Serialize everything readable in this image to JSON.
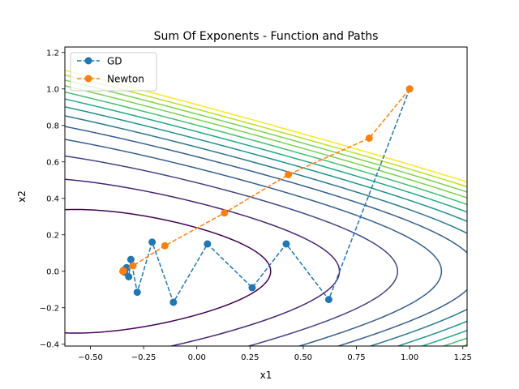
{
  "chart_data": {
    "type": "line",
    "title": "Sum Of Exponents - Function and Paths",
    "xlabel": "x1",
    "ylabel": "x2",
    "xlim": [
      -0.62,
      1.27
    ],
    "ylim": [
      -0.41,
      1.23
    ],
    "xticks": [
      -0.5,
      -0.25,
      0.0,
      0.25,
      0.5,
      0.75,
      1.0,
      1.25
    ],
    "xtick_labels": [
      "−0.50",
      "−0.25",
      "0.00",
      "0.25",
      "0.50",
      "0.75",
      "1.00",
      "1.25"
    ],
    "yticks": [
      -0.4,
      -0.2,
      0.0,
      0.2,
      0.4,
      0.6,
      0.8,
      1.0,
      1.2
    ],
    "ytick_labels": [
      "−0.4",
      "−0.2",
      "0.0",
      "0.2",
      "0.4",
      "0.6",
      "0.8",
      "1.0",
      "1.2"
    ],
    "grid": false,
    "legend_placement": "upper left",
    "series": [
      {
        "name": "GD",
        "color": "#1f77b4",
        "linestyle": "dashed",
        "marker": "circle",
        "x": [
          1.0,
          0.62,
          0.42,
          0.26,
          0.05,
          -0.11,
          -0.21,
          -0.28,
          -0.31,
          -0.32,
          -0.33,
          -0.34,
          -0.345,
          -0.347
        ],
        "y": [
          1.0,
          -0.155,
          0.15,
          -0.09,
          0.15,
          -0.17,
          0.16,
          -0.115,
          0.065,
          -0.03,
          0.02,
          -0.005,
          0.005,
          0.0
        ]
      },
      {
        "name": "Newton",
        "color": "#ff7f0e",
        "linestyle": "dashed",
        "marker": "circle",
        "x": [
          1.0,
          0.81,
          0.43,
          0.13,
          -0.15,
          -0.3,
          -0.345,
          -0.347
        ],
        "y": [
          1.0,
          0.73,
          0.53,
          0.32,
          0.14,
          0.03,
          0.003,
          0.0
        ]
      }
    ],
    "contours": {
      "function": "exp(x1 + 3*x2 - 0.1) + exp(x1 - 3*x2 - 0.1) + exp(-x1 - 0.1)",
      "levels": [
        3.2,
        4.0,
        5.0,
        6.0,
        7.0,
        8.0,
        9.0,
        10.0,
        11.0,
        12.0,
        13.0,
        14.0,
        15.0
      ],
      "colormap": [
        "#440154",
        "#482475",
        "#414487",
        "#355f8d",
        "#2a788e",
        "#21918c",
        "#22a884",
        "#44bf70",
        "#7ad151",
        "#bddf26",
        "#fde725"
      ]
    }
  }
}
